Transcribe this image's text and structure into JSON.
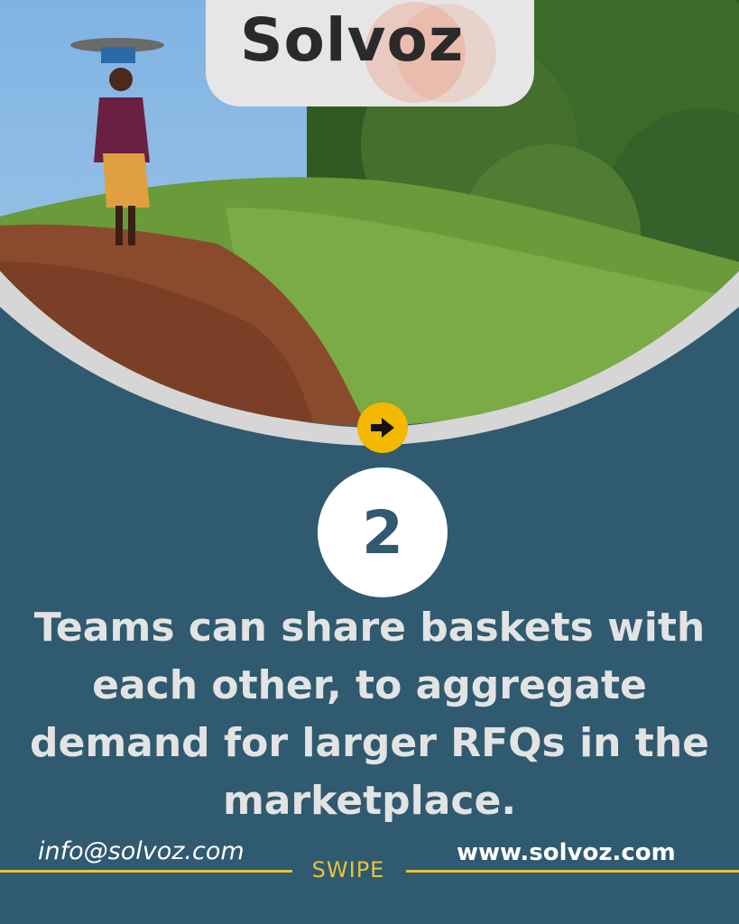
{
  "brand": {
    "logo_text": "Solvoz",
    "accent_color": "#f26b2a"
  },
  "photo": {
    "description_icon": "woman-walking-path-photo"
  },
  "navigation": {
    "next_icon": "arrow-right-icon"
  },
  "step": {
    "number": "2"
  },
  "headline": "Teams can share baskets with each other, to aggregate demand for larger RFQs in the marketplace.",
  "footer": {
    "email": "info@solvoz.com",
    "swipe_label": "SWIPE",
    "website": "www.solvoz.com"
  },
  "colors": {
    "background": "#2f5a6f",
    "highlight": "#f5b800",
    "divider": "#e8c33a"
  }
}
